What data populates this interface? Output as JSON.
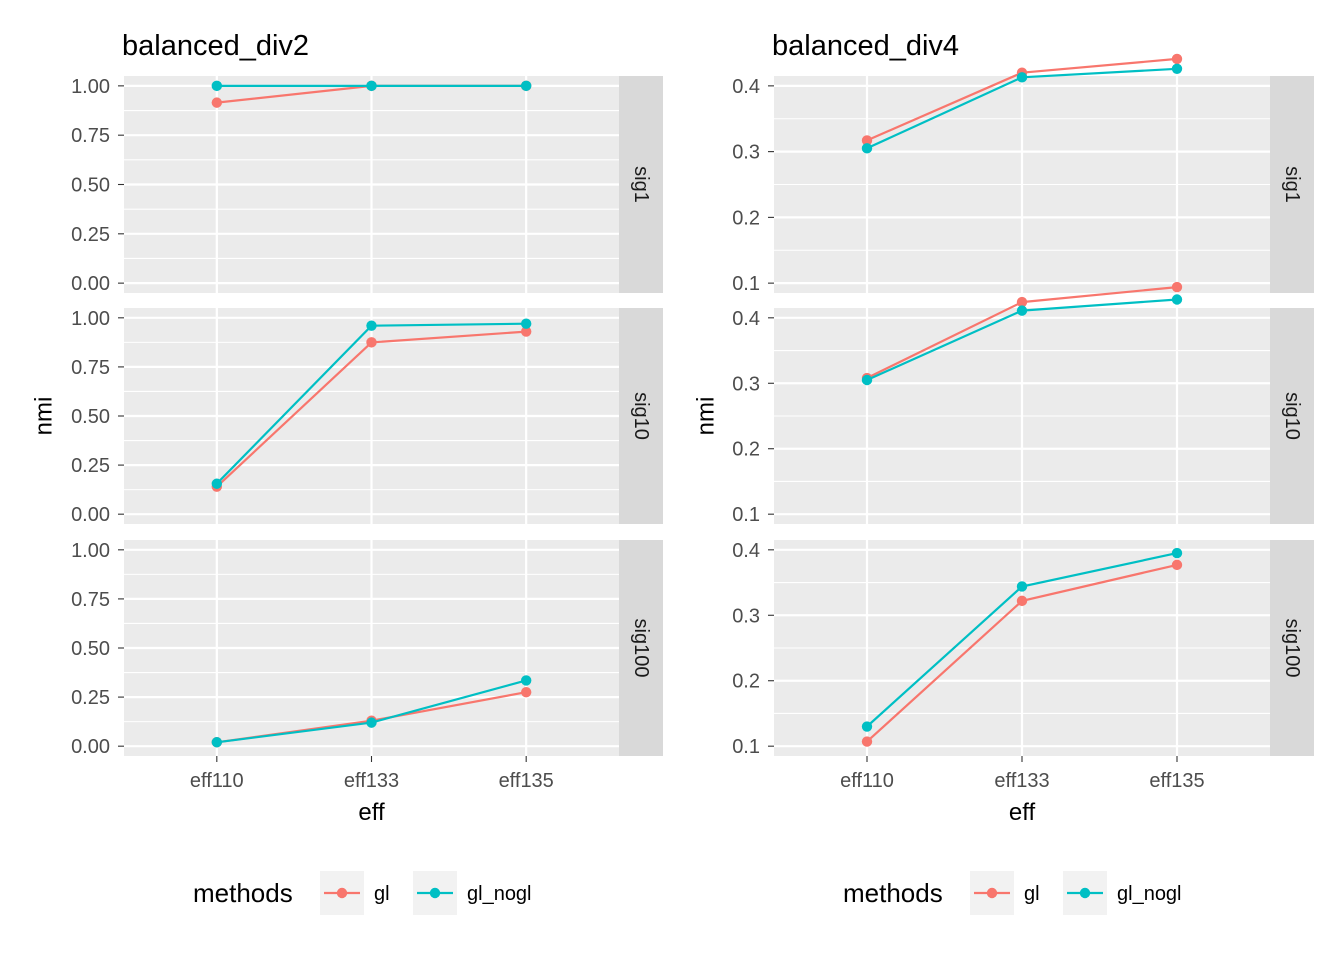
{
  "chart_data": [
    {
      "type": "line",
      "title": "balanced_div2",
      "xlabel": "eff",
      "ylabel": "nmi",
      "categories": [
        "eff110",
        "eff133",
        "eff135"
      ],
      "legend": {
        "title": "methods",
        "position": "bottom",
        "entries": [
          "gl",
          "gl_nogl"
        ]
      },
      "colors": {
        "gl": "#F8766D",
        "gl_nogl": "#00BFC4"
      },
      "grid": true,
      "facets": [
        {
          "label": "sig1",
          "ylim": [
            0,
            1
          ],
          "yticks": [
            0,
            0.25,
            0.5,
            0.75,
            1
          ],
          "ytick_labels": [
            "0.00",
            "0.25",
            "0.50",
            "0.75",
            "1.00"
          ],
          "series": [
            {
              "name": "gl",
              "values": [
                0.915,
                1.0,
                1.0
              ]
            },
            {
              "name": "gl_nogl",
              "values": [
                1.0,
                1.0,
                1.0
              ]
            }
          ]
        },
        {
          "label": "sig10",
          "ylim": [
            0,
            1
          ],
          "yticks": [
            0,
            0.25,
            0.5,
            0.75,
            1
          ],
          "ytick_labels": [
            "0.00",
            "0.25",
            "0.50",
            "0.75",
            "1.00"
          ],
          "series": [
            {
              "name": "gl",
              "values": [
                0.14,
                0.875,
                0.93
              ]
            },
            {
              "name": "gl_nogl",
              "values": [
                0.155,
                0.96,
                0.97
              ]
            }
          ]
        },
        {
          "label": "sig100",
          "ylim": [
            0,
            1
          ],
          "yticks": [
            0,
            0.25,
            0.5,
            0.75,
            1
          ],
          "ytick_labels": [
            "0.00",
            "0.25",
            "0.50",
            "0.75",
            "1.00"
          ],
          "series": [
            {
              "name": "gl",
              "values": [
                0.02,
                0.13,
                0.275
              ]
            },
            {
              "name": "gl_nogl",
              "values": [
                0.02,
                0.12,
                0.335
              ]
            }
          ]
        }
      ]
    },
    {
      "type": "line",
      "title": "balanced_div4",
      "xlabel": "eff",
      "ylabel": "nmi",
      "categories": [
        "eff110",
        "eff133",
        "eff135"
      ],
      "legend": {
        "title": "methods",
        "position": "bottom",
        "entries": [
          "gl",
          "gl_nogl"
        ]
      },
      "colors": {
        "gl": "#F8766D",
        "gl_nogl": "#00BFC4"
      },
      "grid": true,
      "facets": [
        {
          "label": "sig1",
          "ylim": [
            0.1,
            0.4
          ],
          "yticks": [
            0.1,
            0.2,
            0.3,
            0.4
          ],
          "ytick_labels": [
            "0.1",
            "0.2",
            "0.3",
            "0.4"
          ],
          "series": [
            {
              "name": "gl",
              "values": [
                0.317,
                0.42,
                0.441
              ]
            },
            {
              "name": "gl_nogl",
              "values": [
                0.305,
                0.413,
                0.426
              ]
            }
          ]
        },
        {
          "label": "sig10",
          "ylim": [
            0.1,
            0.4
          ],
          "yticks": [
            0.1,
            0.2,
            0.3,
            0.4
          ],
          "ytick_labels": [
            "0.1",
            "0.2",
            "0.3",
            "0.4"
          ],
          "series": [
            {
              "name": "gl",
              "values": [
                0.308,
                0.424,
                0.447
              ]
            },
            {
              "name": "gl_nogl",
              "values": [
                0.305,
                0.411,
                0.428
              ]
            }
          ]
        },
        {
          "label": "sig100",
          "ylim": [
            0.1,
            0.4
          ],
          "yticks": [
            0.1,
            0.2,
            0.3,
            0.4
          ],
          "ytick_labels": [
            "0.1",
            "0.2",
            "0.3",
            "0.4"
          ],
          "series": [
            {
              "name": "gl",
              "values": [
                0.107,
                0.322,
                0.377
              ]
            },
            {
              "name": "gl_nogl",
              "values": [
                0.13,
                0.344,
                0.395
              ]
            }
          ]
        }
      ]
    }
  ]
}
